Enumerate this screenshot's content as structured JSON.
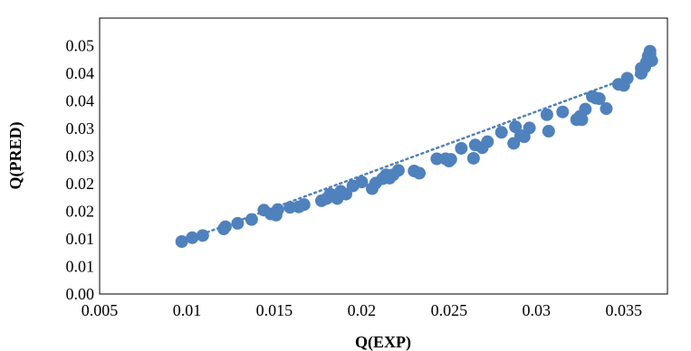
{
  "chart_data": {
    "type": "scatter",
    "title": "",
    "xlabel": "Q(EXP)",
    "ylabel": "Q(PRED)",
    "xlim": [
      0.005,
      0.0375
    ],
    "ylim": [
      0.0,
      0.05
    ],
    "x_ticks": [
      "0.005",
      "0.01",
      "0.015",
      "0.02",
      "0.025",
      "0.03",
      "0.035"
    ],
    "x_tick_values": [
      0.005,
      0.01,
      0.015,
      0.02,
      0.025,
      0.03,
      0.035
    ],
    "y_ticks": [
      "0.00",
      "0.01",
      "0.01",
      "0.02",
      "0.02",
      "0.03",
      "0.03",
      "0.04",
      "0.04",
      "0.05"
    ],
    "y_tick_values": [
      0.0,
      0.005,
      0.01,
      0.015,
      0.02,
      0.025,
      0.03,
      0.035,
      0.04,
      0.045
    ],
    "grid": false,
    "legend": "none",
    "marker_color": "#4f81bd",
    "trendline": {
      "style": "dotted",
      "color": "#4f81bd",
      "x_range": [
        0.0097,
        0.0364
      ],
      "y_range": [
        0.0095,
        0.0405
      ]
    },
    "points": [
      {
        "x": 0.0097,
        "y": 0.0095
      },
      {
        "x": 0.0103,
        "y": 0.0102
      },
      {
        "x": 0.0109,
        "y": 0.0106
      },
      {
        "x": 0.0121,
        "y": 0.0118
      },
      {
        "x": 0.0122,
        "y": 0.0122
      },
      {
        "x": 0.0129,
        "y": 0.0128
      },
      {
        "x": 0.0137,
        "y": 0.0135
      },
      {
        "x": 0.0144,
        "y": 0.0152
      },
      {
        "x": 0.0148,
        "y": 0.0145
      },
      {
        "x": 0.0151,
        "y": 0.0143
      },
      {
        "x": 0.0152,
        "y": 0.0153
      },
      {
        "x": 0.0159,
        "y": 0.0157
      },
      {
        "x": 0.0164,
        "y": 0.0158
      },
      {
        "x": 0.0167,
        "y": 0.0162
      },
      {
        "x": 0.0177,
        "y": 0.0169
      },
      {
        "x": 0.018,
        "y": 0.0173
      },
      {
        "x": 0.0182,
        "y": 0.0181
      },
      {
        "x": 0.0185,
        "y": 0.0178
      },
      {
        "x": 0.0186,
        "y": 0.0173
      },
      {
        "x": 0.0188,
        "y": 0.0186
      },
      {
        "x": 0.0191,
        "y": 0.0181
      },
      {
        "x": 0.0195,
        "y": 0.0196
      },
      {
        "x": 0.02,
        "y": 0.0203
      },
      {
        "x": 0.0206,
        "y": 0.0191
      },
      {
        "x": 0.0208,
        "y": 0.0201
      },
      {
        "x": 0.0212,
        "y": 0.0209
      },
      {
        "x": 0.0214,
        "y": 0.0216
      },
      {
        "x": 0.0216,
        "y": 0.021
      },
      {
        "x": 0.0218,
        "y": 0.0216
      },
      {
        "x": 0.0221,
        "y": 0.0224
      },
      {
        "x": 0.023,
        "y": 0.0223
      },
      {
        "x": 0.0233,
        "y": 0.0219
      },
      {
        "x": 0.0243,
        "y": 0.0245
      },
      {
        "x": 0.0248,
        "y": 0.0245
      },
      {
        "x": 0.025,
        "y": 0.0241
      },
      {
        "x": 0.0251,
        "y": 0.0244
      },
      {
        "x": 0.0257,
        "y": 0.0264
      },
      {
        "x": 0.0264,
        "y": 0.0246
      },
      {
        "x": 0.0265,
        "y": 0.027
      },
      {
        "x": 0.0269,
        "y": 0.0265
      },
      {
        "x": 0.0272,
        "y": 0.0276
      },
      {
        "x": 0.028,
        "y": 0.0293
      },
      {
        "x": 0.0287,
        "y": 0.0273
      },
      {
        "x": 0.0288,
        "y": 0.0303
      },
      {
        "x": 0.0291,
        "y": 0.0287
      },
      {
        "x": 0.0293,
        "y": 0.0285
      },
      {
        "x": 0.0296,
        "y": 0.0301
      },
      {
        "x": 0.0306,
        "y": 0.0325
      },
      {
        "x": 0.0307,
        "y": 0.0295
      },
      {
        "x": 0.0315,
        "y": 0.033
      },
      {
        "x": 0.0323,
        "y": 0.0316
      },
      {
        "x": 0.0325,
        "y": 0.0322
      },
      {
        "x": 0.0326,
        "y": 0.0316
      },
      {
        "x": 0.0328,
        "y": 0.0335
      },
      {
        "x": 0.0332,
        "y": 0.0358
      },
      {
        "x": 0.0334,
        "y": 0.0355
      },
      {
        "x": 0.0336,
        "y": 0.0354
      },
      {
        "x": 0.034,
        "y": 0.0336
      },
      {
        "x": 0.0347,
        "y": 0.038
      },
      {
        "x": 0.035,
        "y": 0.0378
      },
      {
        "x": 0.0352,
        "y": 0.0391
      },
      {
        "x": 0.036,
        "y": 0.04
      },
      {
        "x": 0.036,
        "y": 0.0409
      },
      {
        "x": 0.0362,
        "y": 0.0411
      },
      {
        "x": 0.0363,
        "y": 0.042
      },
      {
        "x": 0.0364,
        "y": 0.0431
      },
      {
        "x": 0.0365,
        "y": 0.044
      },
      {
        "x": 0.0366,
        "y": 0.0423
      },
      {
        "x": 0.0365,
        "y": 0.0434
      }
    ]
  }
}
